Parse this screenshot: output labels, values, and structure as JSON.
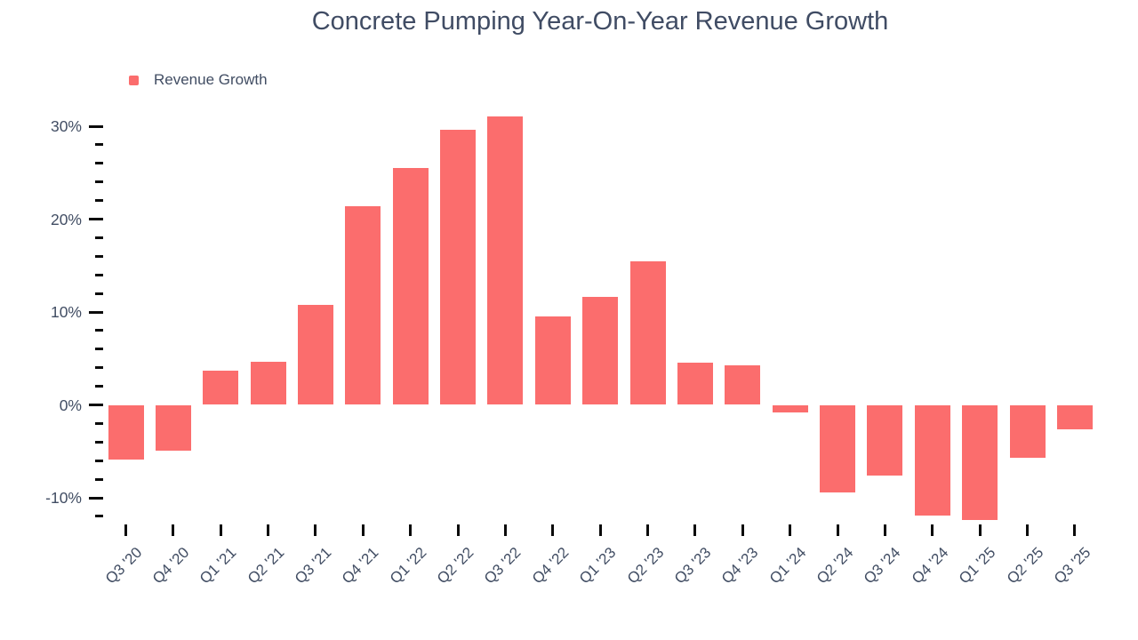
{
  "title": "Concrete Pumping Year-On-Year Revenue Growth",
  "legend": {
    "label": "Revenue Growth",
    "color": "#fb6d6d"
  },
  "chart_data": {
    "type": "bar",
    "title": "Concrete Pumping Year-On-Year Revenue Growth",
    "series_name": "Revenue Growth",
    "categories": [
      "Q3 '20",
      "Q4 '20",
      "Q1 '21",
      "Q2 '21",
      "Q3 '21",
      "Q4 '21",
      "Q1 '22",
      "Q2 '22",
      "Q3 '22",
      "Q4 '22",
      "Q1 '23",
      "Q2 '23",
      "Q3 '23",
      "Q4 '23",
      "Q1 '24",
      "Q2 '24",
      "Q3 '24",
      "Q4 '24",
      "Q1 '25",
      "Q2 '25",
      "Q3 '25"
    ],
    "values": [
      -5.9,
      -4.9,
      3.7,
      4.6,
      10.8,
      21.4,
      25.5,
      29.6,
      31.1,
      9.5,
      11.6,
      15.5,
      4.5,
      4.3,
      -0.8,
      -9.4,
      -7.6,
      -11.9,
      -12.4,
      -5.7,
      -2.6
    ],
    "unit": "%",
    "xlabel": "",
    "ylabel": "",
    "ylim": [
      -12,
      31.5
    ],
    "ytick_major": [
      30,
      20,
      10,
      0,
      -10
    ],
    "ytick_major_labels": [
      "30%",
      "20%",
      "10%",
      "0%",
      "-10%"
    ],
    "ytick_minor_step": 2,
    "ytick_range": [
      30,
      -12
    ],
    "grid": false,
    "legend_position": "top-left",
    "bar_color": "#fb6d6d",
    "text_color": "#414d63",
    "tick_color": "#0b0b0b",
    "background_color": "#ffffff"
  }
}
